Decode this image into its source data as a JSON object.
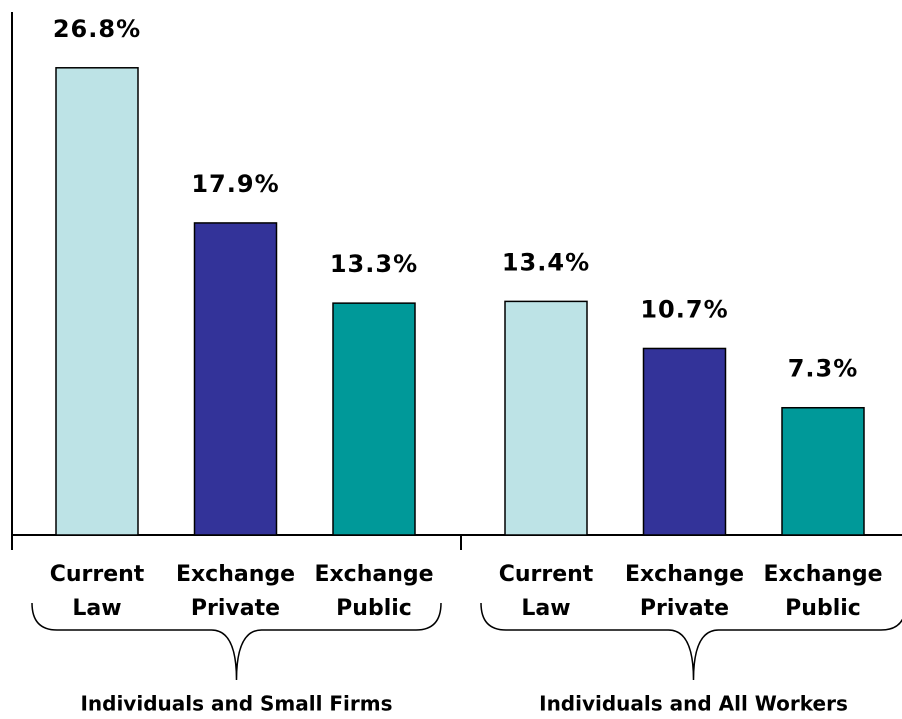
{
  "chart_data": {
    "type": "bar",
    "colors": [
      "#bde3e6",
      "#333399",
      "#009999"
    ],
    "ylim": [
      0,
      30
    ],
    "groups": [
      {
        "name": "Individuals and Small Firms",
        "categories": [
          [
            "Current",
            "Law"
          ],
          [
            "Exchange",
            "Private"
          ],
          [
            "Exchange",
            "Public"
          ]
        ],
        "values": [
          26.8,
          17.9,
          13.3
        ],
        "value_labels": [
          "26.8%",
          "17.9%",
          "13.3%"
        ]
      },
      {
        "name": "Individuals and All Workers",
        "categories": [
          [
            "Current",
            "Law"
          ],
          [
            "Exchange",
            "Private"
          ],
          [
            "Exchange",
            "Public"
          ]
        ],
        "values": [
          13.4,
          10.7,
          7.3
        ],
        "value_labels": [
          "13.4%",
          "10.7%",
          "7.3%"
        ]
      }
    ]
  }
}
